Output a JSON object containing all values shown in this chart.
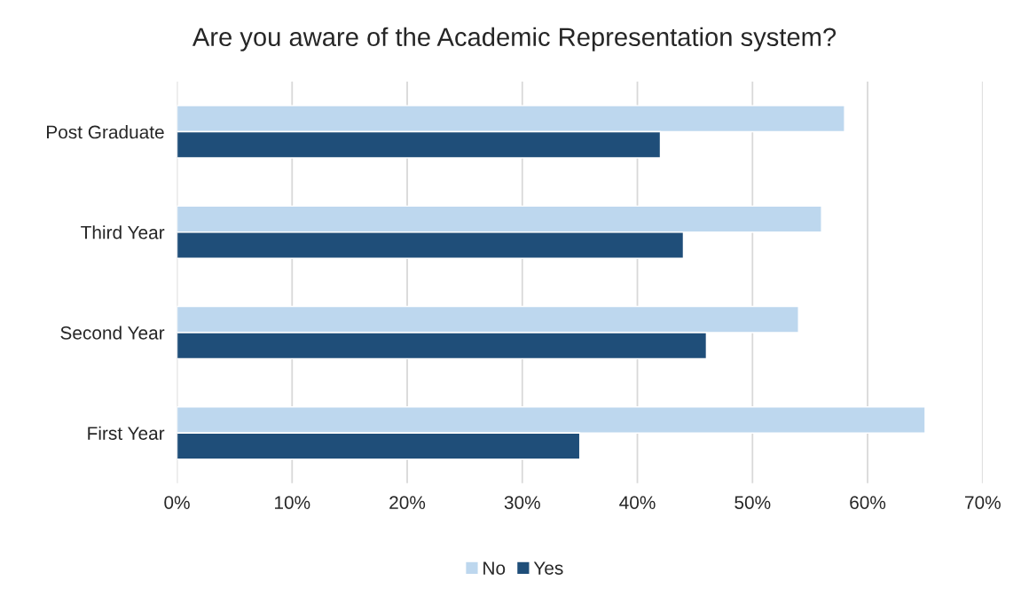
{
  "chart_data": {
    "type": "bar",
    "orientation": "horizontal",
    "title": "Are you aware of the Academic Representation system?",
    "categories": [
      "Post Graduate",
      "Third Year",
      "Second Year",
      "First Year"
    ],
    "series": [
      {
        "name": "No",
        "color": "#bdd7ee",
        "values": [
          58,
          56,
          54,
          65
        ]
      },
      {
        "name": "Yes",
        "color": "#1f4e79",
        "values": [
          42,
          44,
          46,
          35
        ]
      }
    ],
    "xlim": [
      0,
      70
    ],
    "xticks": [
      {
        "value": 0,
        "label": "0%"
      },
      {
        "value": 10,
        "label": "10%"
      },
      {
        "value": 20,
        "label": "20%"
      },
      {
        "value": 30,
        "label": "30%"
      },
      {
        "value": 40,
        "label": "40%"
      },
      {
        "value": 50,
        "label": "50%"
      },
      {
        "value": 60,
        "label": "60%"
      },
      {
        "value": 70,
        "label": "70%"
      }
    ],
    "grid": "x",
    "legend": "bottom"
  }
}
